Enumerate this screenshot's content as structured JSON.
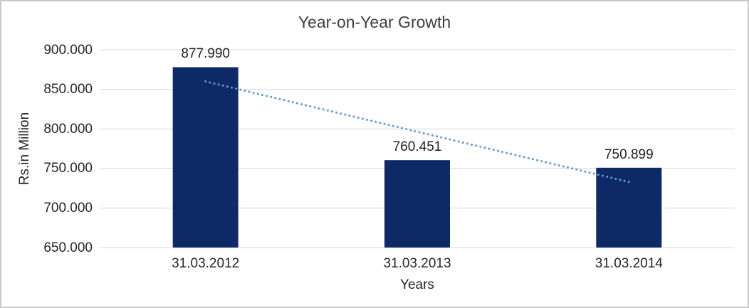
{
  "window": {
    "background": "#ffffff",
    "border_color": "#c9c9c9"
  },
  "chart_data": {
    "type": "bar",
    "title": "Year-on-Year Growth",
    "xlabel": "Years",
    "ylabel": "Rs.in Million",
    "categories": [
      "31.03.2012",
      "31.03.2013",
      "31.03.2014"
    ],
    "values": [
      877.99,
      760.451,
      750.899
    ],
    "value_labels": [
      "877.990",
      "760.451",
      "750.899"
    ],
    "ylim": [
      650,
      900
    ],
    "ytick_step": 50,
    "ytick_labels": [
      "650.000",
      "700.000",
      "750.000",
      "800.000",
      "850.000",
      "900.000"
    ],
    "grid": true,
    "legend": "none",
    "bar_color": "#0d2a66",
    "gridline_color": "#d9d9d9",
    "trendline": {
      "type": "linear",
      "style": "dotted",
      "color": "#5b9bd5",
      "start_value": 860.0,
      "end_value": 732.9
    }
  }
}
